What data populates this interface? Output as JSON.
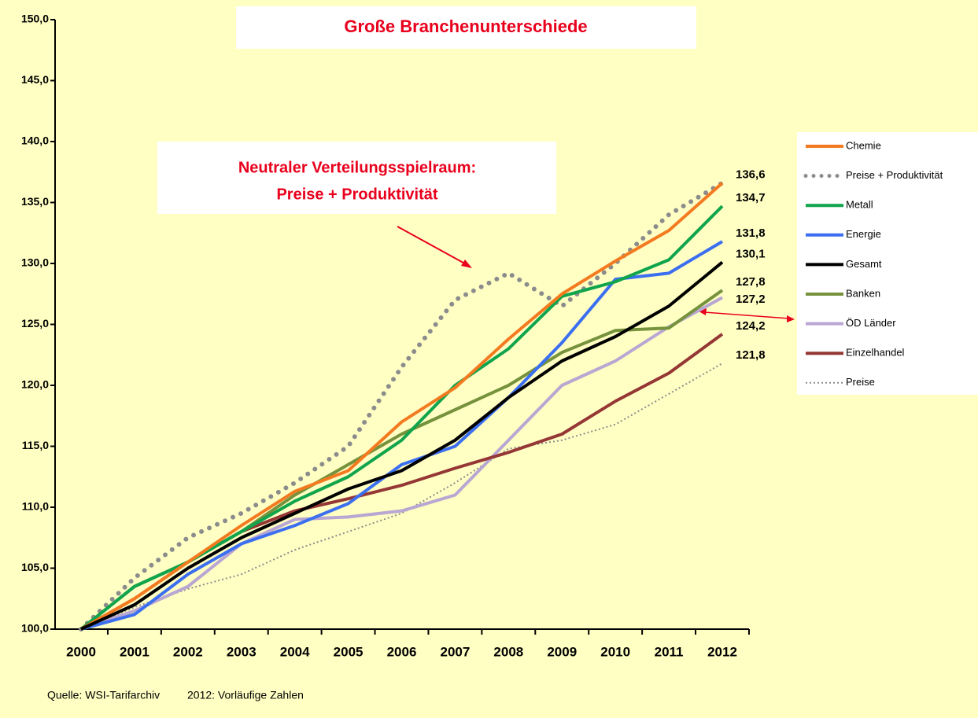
{
  "chart_data": {
    "type": "line",
    "title": "Große Branchenunterschiede",
    "annotation": [
      "Neutraler Verteilungsspielraum:",
      "Preise + Produktivität"
    ],
    "source": "Quelle: WSI-Tarifarchiv",
    "note": "2012: Vorläufige Zahlen",
    "categories": [
      "2000",
      "2001",
      "2002",
      "2003",
      "2004",
      "2005",
      "2006",
      "2007",
      "2008",
      "2009",
      "2010",
      "2011",
      "2012"
    ],
    "ylim": [
      100,
      150
    ],
    "yticks": [
      {
        "value": 100,
        "label": "100,0"
      },
      {
        "value": 105,
        "label": "105,0"
      },
      {
        "value": 110,
        "label": "110,0"
      },
      {
        "value": 115,
        "label": "115,0"
      },
      {
        "value": 120,
        "label": "120,0"
      },
      {
        "value": 125,
        "label": "125,0"
      },
      {
        "value": 130,
        "label": "130,0"
      },
      {
        "value": 135,
        "label": "135,0"
      },
      {
        "value": 140,
        "label": "140,0"
      },
      {
        "value": 145,
        "label": "145,0"
      },
      {
        "value": 150,
        "label": "150,0"
      }
    ],
    "series": [
      {
        "name": "Chemie",
        "color": "#f47a20",
        "style": "solid",
        "values": [
          100,
          102.5,
          105.5,
          108.5,
          111.3,
          113,
          117,
          119.8,
          123.8,
          127.5,
          130.2,
          132.7,
          136.6
        ],
        "value_labels": [
          null,
          null,
          null,
          null,
          null,
          null,
          null,
          null,
          null,
          null,
          null,
          null,
          "136,6"
        ]
      },
      {
        "name": "Preise + Produktivität",
        "color": "#8c8c8c",
        "style": "dotted",
        "values": [
          100,
          104.2,
          107.5,
          109.5,
          112,
          115,
          121.5,
          127,
          129.2,
          126.5,
          130,
          134,
          136.6
        ],
        "value_labels": [
          null,
          null,
          null,
          null,
          null,
          null,
          null,
          null,
          null,
          null,
          null,
          null,
          null
        ]
      },
      {
        "name": "Metall",
        "color": "#10a44c",
        "style": "solid",
        "values": [
          100,
          103.5,
          105.5,
          108,
          110.5,
          112.5,
          115.5,
          120,
          123,
          127.3,
          128.5,
          130.3,
          134.7
        ],
        "value_labels": [
          null,
          null,
          null,
          null,
          null,
          null,
          null,
          null,
          null,
          null,
          null,
          null,
          "134,7"
        ]
      },
      {
        "name": "Energie",
        "color": "#3b6ff0",
        "style": "solid",
        "values": [
          100,
          101.2,
          104.5,
          107,
          108.5,
          110.3,
          113.5,
          115,
          119,
          123.5,
          128.7,
          129.2,
          131.8
        ],
        "value_labels": [
          null,
          null,
          null,
          null,
          null,
          null,
          null,
          null,
          null,
          null,
          null,
          null,
          "131,8"
        ]
      },
      {
        "name": "Gesamt",
        "color": "#000000",
        "style": "solid",
        "values": [
          100,
          102,
          105,
          107.5,
          109.5,
          111.5,
          113,
          115.5,
          119,
          122,
          124,
          126.5,
          130.1
        ],
        "value_labels": [
          null,
          null,
          null,
          null,
          null,
          null,
          null,
          null,
          null,
          null,
          null,
          null,
          "130,1"
        ]
      },
      {
        "name": "Banken",
        "color": "#76923c",
        "style": "solid",
        "values": [
          100,
          103.5,
          105.5,
          108,
          111,
          113.5,
          116,
          118,
          120,
          122.7,
          124.5,
          124.7,
          127.8
        ],
        "value_labels": [
          null,
          null,
          null,
          null,
          null,
          null,
          null,
          null,
          null,
          null,
          null,
          null,
          "127,8"
        ]
      },
      {
        "name": "ÖD Länder",
        "color": "#b9a6d2",
        "style": "solid",
        "values": [
          100,
          101.5,
          103.5,
          107,
          109,
          109.2,
          109.7,
          111,
          115.5,
          120,
          122,
          124.8,
          127.2
        ],
        "value_labels": [
          null,
          null,
          null,
          null,
          null,
          null,
          null,
          null,
          null,
          null,
          null,
          null,
          "127,2"
        ]
      },
      {
        "name": "Einzelhandel",
        "color": "#953735",
        "style": "solid",
        "values": [
          100,
          102.5,
          105.5,
          108,
          109.7,
          110.7,
          111.8,
          113.2,
          114.5,
          116,
          118.7,
          121,
          124.2
        ],
        "value_labels": [
          null,
          null,
          null,
          null,
          null,
          null,
          null,
          null,
          null,
          null,
          null,
          null,
          "124,2"
        ]
      },
      {
        "name": "Preise",
        "color": "#8c8c8c",
        "style": "thin-dotted",
        "values": [
          100,
          101.8,
          103.3,
          104.5,
          106.5,
          108,
          109.5,
          112,
          114.8,
          115.5,
          116.8,
          119.3,
          121.8
        ],
        "value_labels": [
          null,
          null,
          null,
          null,
          null,
          null,
          null,
          null,
          null,
          null,
          null,
          null,
          "121,8"
        ]
      }
    ]
  }
}
